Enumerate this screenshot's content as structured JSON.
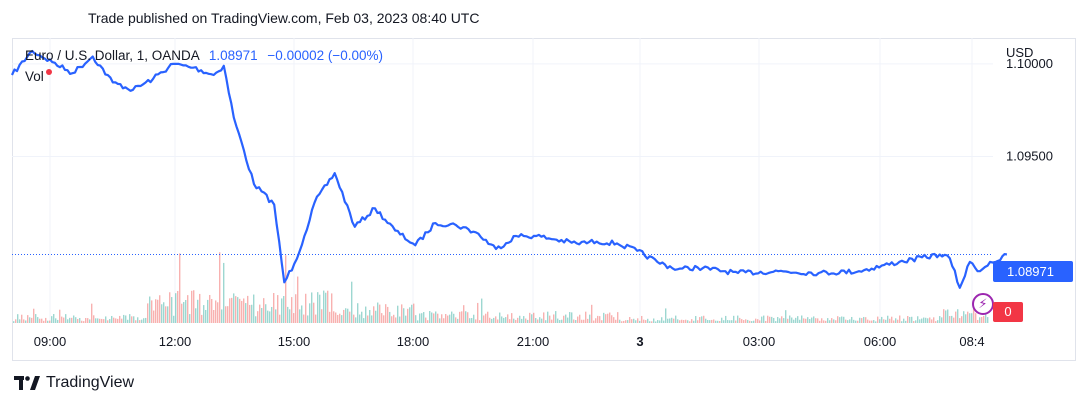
{
  "header": {
    "published": "Trade published on TradingView.com, Feb 03, 2023 08:40 UTC"
  },
  "legend": {
    "symbol": "Euro / U.S. Dollar, 1, OANDA",
    "price": "1.08971",
    "change": "−0.00002 (−0.00%)",
    "volume_label": "Vol"
  },
  "axis": {
    "currency": "USD",
    "y_ticks": [
      "1.10000",
      "1.09500"
    ],
    "x_ticks": [
      "09:00",
      "12:00",
      "15:00",
      "18:00",
      "21:00",
      "3",
      "03:00",
      "06:00",
      "08:4"
    ]
  },
  "tags": {
    "last_price": "1.08971",
    "last_volume": "0"
  },
  "footer": {
    "brand": "TradingView"
  },
  "colors": {
    "line": "#2962ff",
    "vol_up": "#26a69a",
    "vol_down": "#ef5350"
  },
  "chart_data": {
    "type": "line",
    "instrument": "EUR/USD",
    "timeframe": "1",
    "x": [
      "08:00",
      "08:30",
      "09:00",
      "09:30",
      "10:00",
      "10:30",
      "11:00",
      "11:30",
      "12:00",
      "12:30",
      "13:00",
      "13:15",
      "13:30",
      "14:00",
      "14:30",
      "14:45",
      "15:00",
      "15:15",
      "15:30",
      "16:00",
      "16:30",
      "17:00",
      "17:30",
      "18:00",
      "18:30",
      "19:00",
      "19:30",
      "20:00",
      "20:30",
      "21:00",
      "21:30",
      "22:00",
      "22:30",
      "23:00",
      "23:30",
      "00:00",
      "00:30",
      "01:00",
      "02:00",
      "03:00",
      "04:00",
      "05:00",
      "06:00",
      "07:00",
      "07:15",
      "07:30",
      "07:45",
      "08:00",
      "08:15",
      "08:30",
      "08:40"
    ],
    "y": [
      1.0994,
      1.1007,
      1.1001,
      1.0995,
      1.1004,
      1.099,
      1.0986,
      1.0992,
      1.1,
      1.0998,
      1.0994,
      1.0999,
      1.0971,
      1.0935,
      1.0924,
      1.0882,
      1.0892,
      1.0907,
      1.0925,
      1.0941,
      1.0912,
      1.0922,
      1.091,
      1.0902,
      1.0914,
      1.0913,
      1.0909,
      1.09,
      1.0907,
      1.0907,
      1.0905,
      1.0903,
      1.0904,
      1.0903,
      1.0899,
      1.0893,
      1.0889,
      1.089,
      1.0887,
      1.0888,
      1.0887,
      1.0888,
      1.0893,
      1.0897,
      1.0895,
      1.0879,
      1.0893,
      1.0888,
      1.0893,
      1.0894,
      1.0897
    ],
    "ylim": [
      1.086,
      1.1014
    ],
    "grid": true
  }
}
